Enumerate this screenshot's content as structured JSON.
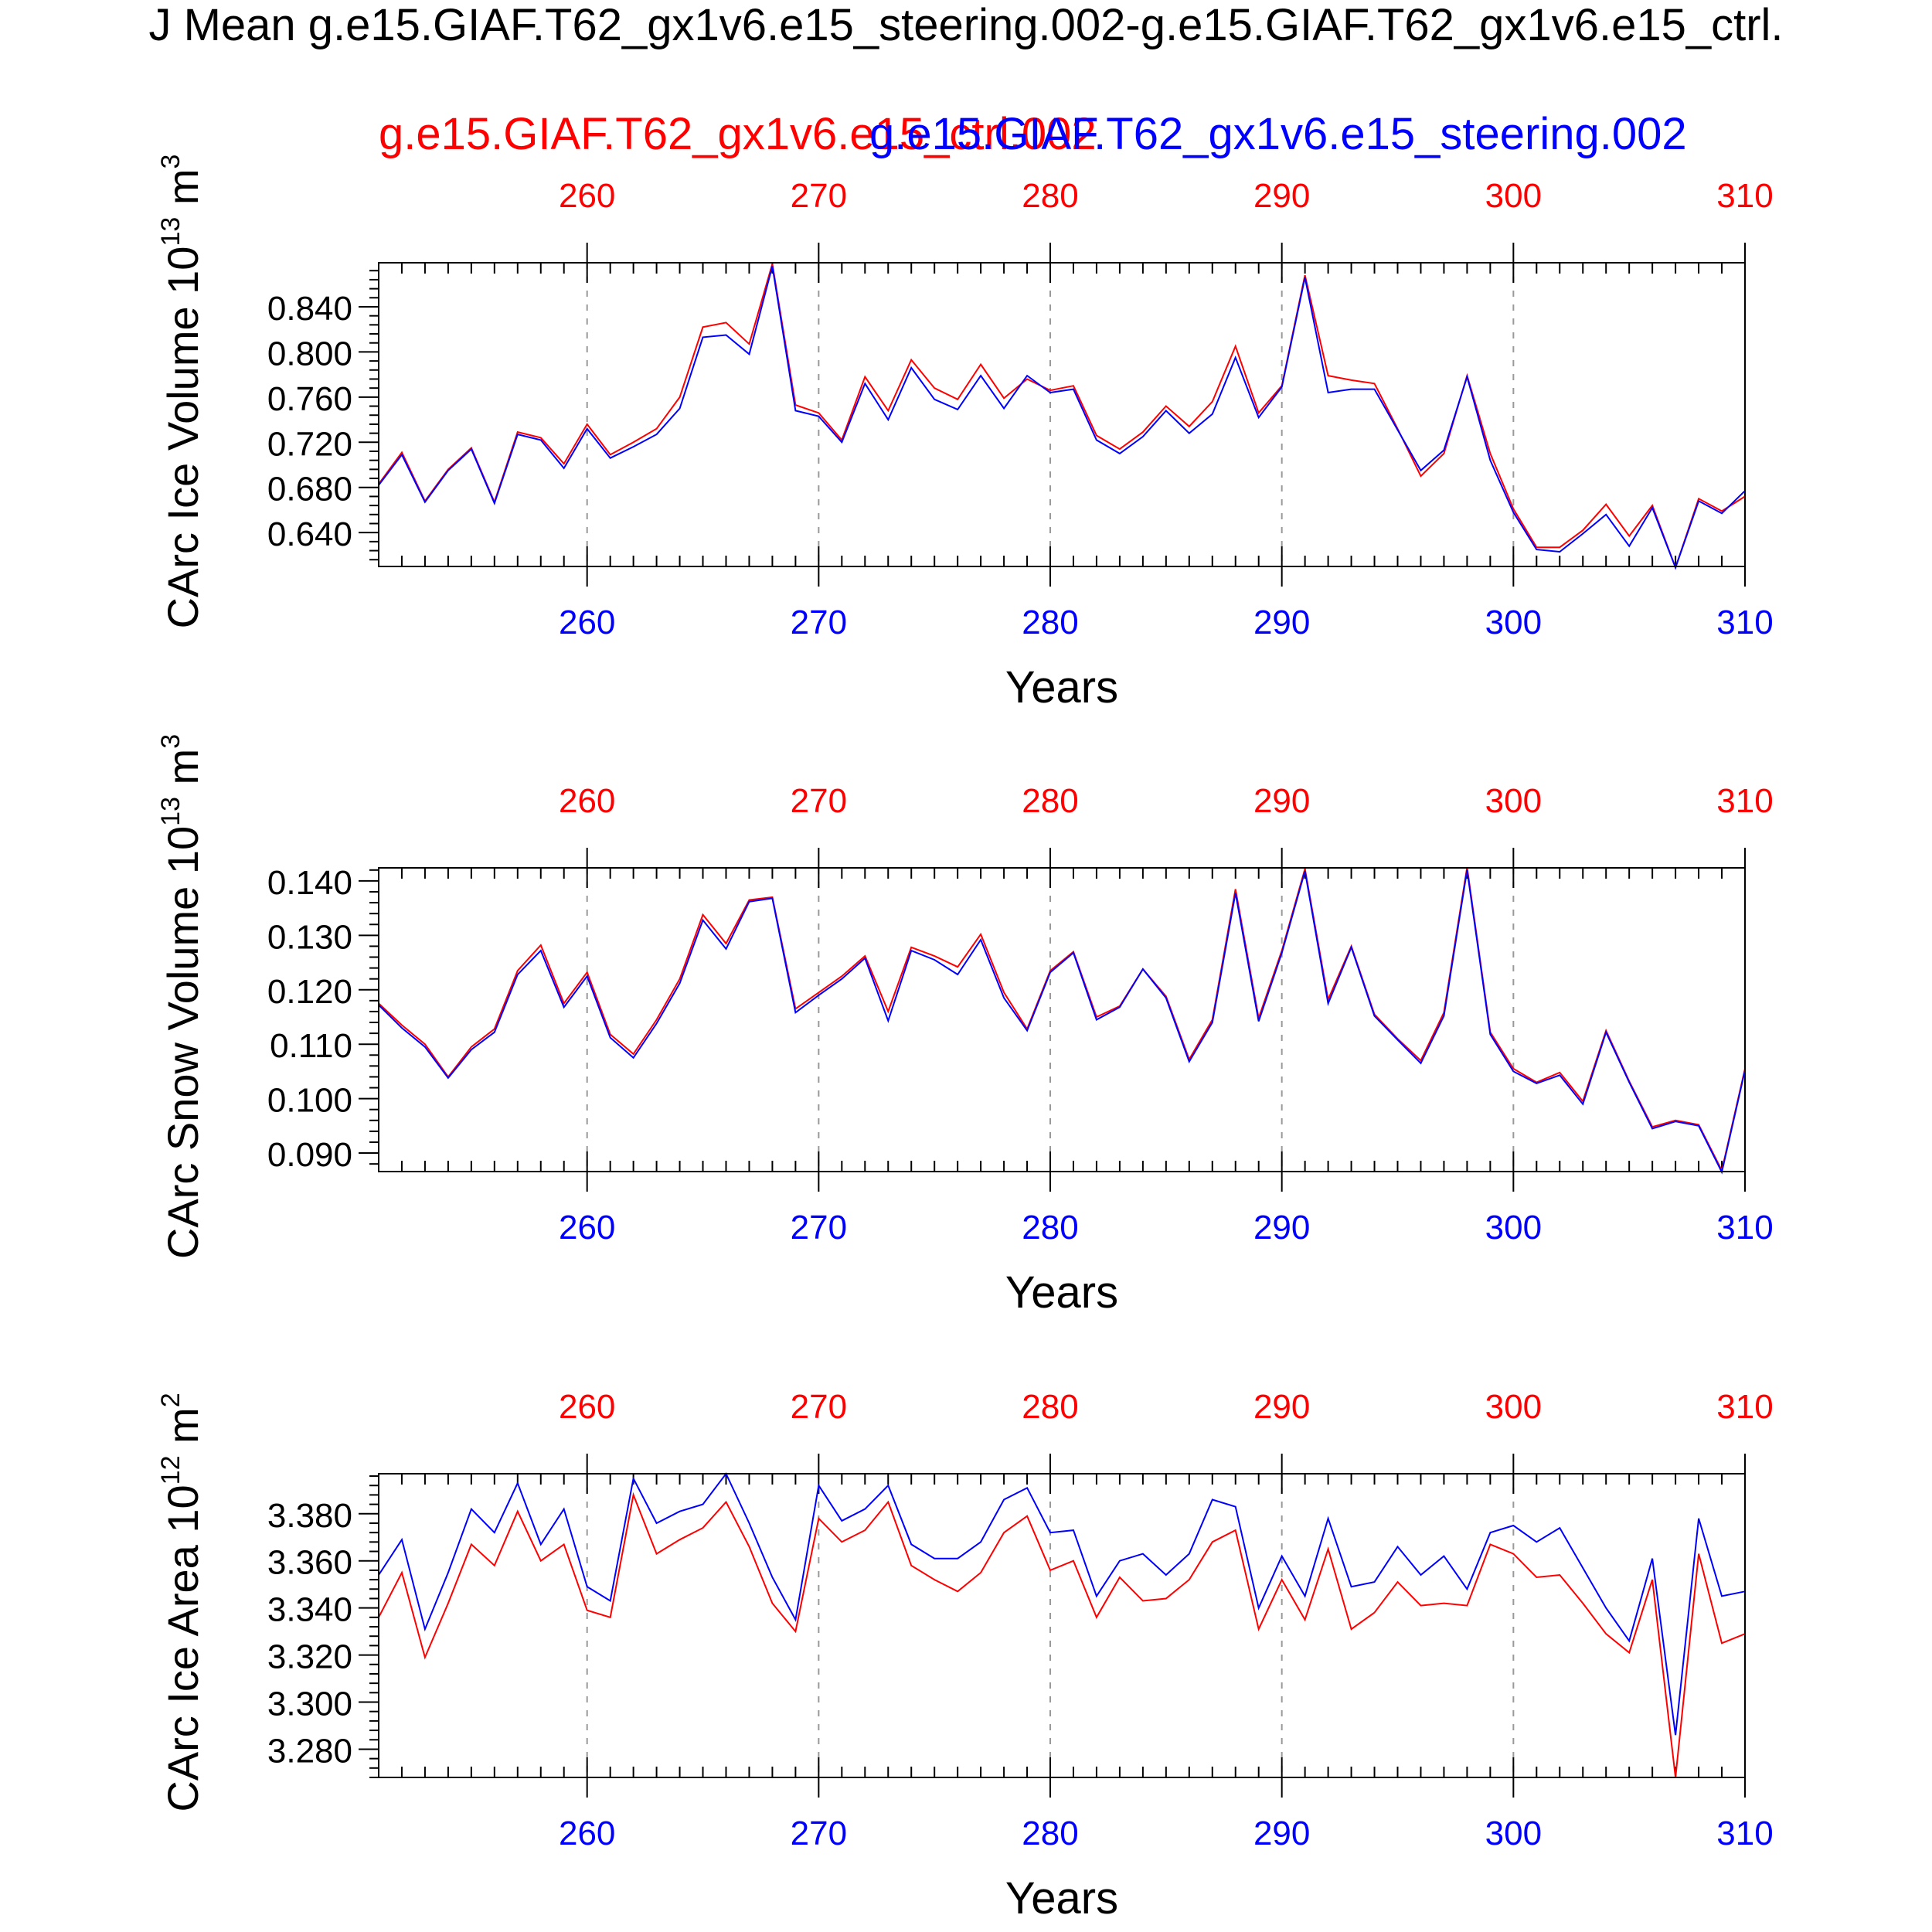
{
  "title": "J Mean g.e15.GIAF.T62_gx1v6.e15_steering.002-g.e15.GIAF.T62_gx1v6.e15_ctrl.",
  "legend_ctrl": "g.e15.GIAF.T62_gx1v6.e15_ctrl.002",
  "legend_steer": "g.e15.GIAF.T62_gx1v6.e15_steering.002",
  "colors": {
    "ctrl": "#ff0000",
    "steer": "#0000ff",
    "axis": "#000000",
    "grid": "#999999"
  },
  "chart_data": [
    {
      "type": "line",
      "ylabel": "CArc Ice Volume 10",
      "ylabel_exp": "13",
      "ylabel_unit": "m",
      "ylabel_unit_exp": "3",
      "xlabel": "Years",
      "xlim": [
        251,
        310
      ],
      "ylim": [
        0.61,
        0.879
      ],
      "xticks": [
        260,
        270,
        280,
        290,
        300,
        310
      ],
      "yticks": [
        "0.640",
        "0.680",
        "0.720",
        "0.760",
        "0.800",
        "0.840"
      ],
      "grid": "vertical dashed at major x ticks",
      "x": [
        251,
        252,
        253,
        254,
        255,
        256,
        257,
        258,
        259,
        260,
        261,
        262,
        263,
        264,
        265,
        266,
        267,
        268,
        269,
        270,
        271,
        272,
        273,
        274,
        275,
        276,
        277,
        278,
        279,
        280,
        281,
        282,
        283,
        284,
        285,
        286,
        287,
        288,
        289,
        290,
        291,
        292,
        293,
        294,
        295,
        296,
        297,
        298,
        299,
        300,
        301,
        302,
        303,
        304,
        305,
        306,
        307,
        308,
        309,
        310
      ],
      "series": [
        {
          "name": "g.e15.GIAF.T62_gx1v6.e15_ctrl.002",
          "color": "red",
          "values": [
            0.683,
            0.711,
            0.668,
            0.696,
            0.715,
            0.667,
            0.729,
            0.724,
            0.701,
            0.736,
            0.709,
            0.72,
            0.732,
            0.76,
            0.822,
            0.826,
            0.807,
            0.878,
            0.753,
            0.746,
            0.722,
            0.778,
            0.748,
            0.793,
            0.768,
            0.758,
            0.789,
            0.759,
            0.776,
            0.766,
            0.77,
            0.726,
            0.714,
            0.729,
            0.752,
            0.734,
            0.756,
            0.805,
            0.746,
            0.77,
            0.868,
            0.779,
            0.775,
            0.772,
            0.732,
            0.69,
            0.71,
            0.779,
            0.71,
            0.661,
            0.627,
            0.627,
            0.642,
            0.665,
            0.637,
            0.664,
            0.609,
            0.67,
            0.659,
            0.672
          ]
        },
        {
          "name": "g.e15.GIAF.T62_gx1v6.e15_steering.002",
          "color": "blue",
          "values": [
            0.682,
            0.709,
            0.667,
            0.695,
            0.714,
            0.666,
            0.727,
            0.722,
            0.697,
            0.732,
            0.706,
            0.716,
            0.727,
            0.75,
            0.813,
            0.815,
            0.798,
            0.876,
            0.748,
            0.743,
            0.72,
            0.772,
            0.74,
            0.786,
            0.758,
            0.749,
            0.779,
            0.75,
            0.779,
            0.764,
            0.767,
            0.722,
            0.71,
            0.725,
            0.748,
            0.728,
            0.745,
            0.795,
            0.742,
            0.769,
            0.866,
            0.764,
            0.767,
            0.767,
            0.731,
            0.695,
            0.713,
            0.778,
            0.704,
            0.658,
            0.625,
            0.623,
            0.639,
            0.656,
            0.628,
            0.662,
            0.609,
            0.668,
            0.657,
            0.677
          ]
        }
      ]
    },
    {
      "type": "line",
      "ylabel": "CArc Snow Volume 10",
      "ylabel_exp": "13",
      "ylabel_unit": "m",
      "ylabel_unit_exp": "3",
      "xlabel": "Years",
      "xlim": [
        251,
        310
      ],
      "ylim": [
        0.0866,
        0.1424
      ],
      "xticks": [
        260,
        270,
        280,
        290,
        300,
        310
      ],
      "yticks": [
        "0.090",
        "0.100",
        "0.110",
        "0.120",
        "0.130",
        "0.140"
      ],
      "grid": "vertical dashed at major x ticks",
      "x": [
        251,
        252,
        253,
        254,
        255,
        256,
        257,
        258,
        259,
        260,
        261,
        262,
        263,
        264,
        265,
        266,
        267,
        268,
        269,
        270,
        271,
        272,
        273,
        274,
        275,
        276,
        277,
        278,
        279,
        280,
        281,
        282,
        283,
        284,
        285,
        286,
        287,
        288,
        289,
        290,
        291,
        292,
        293,
        294,
        295,
        296,
        297,
        298,
        299,
        300,
        301,
        302,
        303,
        304,
        305,
        306,
        307,
        308,
        309,
        310
      ],
      "series": [
        {
          "name": "g.e15.GIAF.T62_gx1v6.e15_ctrl.002",
          "color": "red",
          "values": [
            0.1175,
            0.1135,
            0.11,
            0.104,
            0.1095,
            0.1128,
            0.1235,
            0.1282,
            0.1175,
            0.1232,
            0.1118,
            0.1082,
            0.1145,
            0.122,
            0.1338,
            0.1285,
            0.1365,
            0.137,
            0.1165,
            0.1195,
            0.1225,
            0.1262,
            0.116,
            0.1278,
            0.1262,
            0.1242,
            0.1302,
            0.1195,
            0.1128,
            0.1235,
            0.127,
            0.115,
            0.117,
            0.1238,
            0.1188,
            0.1072,
            0.1145,
            0.1385,
            0.1148,
            0.1272,
            0.1422,
            0.1182,
            0.128,
            0.1155,
            0.111,
            0.107,
            0.1158,
            0.1425,
            0.1122,
            0.1055,
            0.103,
            0.1048,
            0.0995,
            0.1125,
            0.1032,
            0.0948,
            0.096,
            0.0952,
            0.0868,
            0.1055
          ]
        },
        {
          "name": "g.e15.GIAF.T62_gx1v6.e15_steering.002",
          "color": "blue",
          "values": [
            0.1172,
            0.113,
            0.1095,
            0.1038,
            0.109,
            0.1122,
            0.1228,
            0.1272,
            0.1168,
            0.1225,
            0.1112,
            0.1075,
            0.1138,
            0.1212,
            0.1328,
            0.1275,
            0.1362,
            0.1368,
            0.1158,
            0.119,
            0.122,
            0.1258,
            0.1143,
            0.1272,
            0.1255,
            0.1228,
            0.1292,
            0.1185,
            0.1125,
            0.1232,
            0.1268,
            0.1145,
            0.1168,
            0.1238,
            0.1185,
            0.1068,
            0.114,
            0.1378,
            0.1142,
            0.1268,
            0.1418,
            0.1175,
            0.1278,
            0.1152,
            0.1108,
            0.1065,
            0.1152,
            0.142,
            0.1118,
            0.105,
            0.1028,
            0.1043,
            0.099,
            0.1122,
            0.103,
            0.0945,
            0.0958,
            0.095,
            0.0865,
            0.1052
          ]
        }
      ]
    },
    {
      "type": "line",
      "ylabel": "CArc Ice Area 10",
      "ylabel_exp": "12",
      "ylabel_unit": "m",
      "ylabel_unit_exp": "2",
      "xlabel": "Years",
      "xlim": [
        251,
        310
      ],
      "ylim": [
        3.268,
        3.397
      ],
      "xticks": [
        260,
        270,
        280,
        290,
        300,
        310
      ],
      "yticks": [
        "3.280",
        "3.300",
        "3.320",
        "3.340",
        "3.360",
        "3.380"
      ],
      "grid": "vertical dashed at major x ticks",
      "x": [
        251,
        252,
        253,
        254,
        255,
        256,
        257,
        258,
        259,
        260,
        261,
        262,
        263,
        264,
        265,
        266,
        267,
        268,
        269,
        270,
        271,
        272,
        273,
        274,
        275,
        276,
        277,
        278,
        279,
        280,
        281,
        282,
        283,
        284,
        285,
        286,
        287,
        288,
        289,
        290,
        291,
        292,
        293,
        294,
        295,
        296,
        297,
        298,
        299,
        300,
        301,
        302,
        303,
        304,
        305,
        306,
        307,
        308,
        309,
        310
      ],
      "series": [
        {
          "name": "g.e15.GIAF.T62_gx1v6.e15_ctrl.002",
          "color": "red",
          "values": [
            3.336,
            3.355,
            3.319,
            3.342,
            3.367,
            3.358,
            3.381,
            3.36,
            3.367,
            3.339,
            3.336,
            3.388,
            3.363,
            3.369,
            3.374,
            3.385,
            3.366,
            3.342,
            3.33,
            3.378,
            3.368,
            3.373,
            3.385,
            3.358,
            3.352,
            3.347,
            3.355,
            3.372,
            3.379,
            3.356,
            3.36,
            3.336,
            3.353,
            3.343,
            3.344,
            3.352,
            3.368,
            3.373,
            3.331,
            3.352,
            3.335,
            3.365,
            3.331,
            3.338,
            3.351,
            3.341,
            3.342,
            3.341,
            3.367,
            3.363,
            3.353,
            3.354,
            3.342,
            3.329,
            3.321,
            3.352,
            3.268,
            3.363,
            3.325,
            3.329
          ]
        },
        {
          "name": "g.e15.GIAF.T62_gx1v6.e15_steering.002",
          "color": "blue",
          "values": [
            3.354,
            3.369,
            3.331,
            3.355,
            3.382,
            3.372,
            3.393,
            3.367,
            3.382,
            3.349,
            3.343,
            3.395,
            3.376,
            3.381,
            3.384,
            3.397,
            3.376,
            3.353,
            3.335,
            3.392,
            3.377,
            3.382,
            3.392,
            3.367,
            3.361,
            3.361,
            3.368,
            3.386,
            3.391,
            3.372,
            3.373,
            3.345,
            3.36,
            3.363,
            3.354,
            3.363,
            3.386,
            3.383,
            3.34,
            3.362,
            3.345,
            3.378,
            3.349,
            3.351,
            3.366,
            3.354,
            3.362,
            3.348,
            3.372,
            3.375,
            3.368,
            3.374,
            3.357,
            3.34,
            3.326,
            3.361,
            3.286,
            3.378,
            3.345,
            3.347
          ]
        }
      ]
    }
  ]
}
